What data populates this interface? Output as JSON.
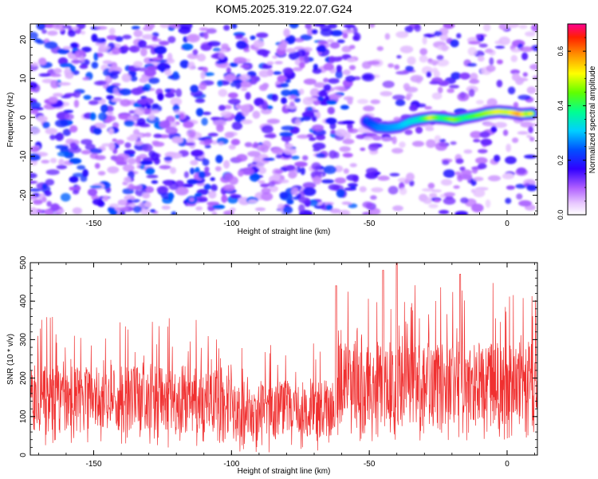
{
  "figure_title": "KOM5.2025.319.22.07.G24",
  "chart_data": [
    {
      "type": "heatmap",
      "xlabel": "Height of straight line (km)",
      "ylabel": "Frequency (Hz)",
      "xlim": [
        -173,
        11
      ],
      "ylim": [
        -25,
        24
      ],
      "xticks": [
        -150,
        -100,
        -50,
        0
      ],
      "xtick_labels": [
        "-150",
        "-100",
        "-50",
        "0"
      ],
      "yticks": [
        -20,
        -10,
        0,
        10,
        20
      ],
      "ytick_labels": [
        "-20",
        "-10",
        "0",
        "10",
        "20"
      ],
      "colorbar": {
        "label": "Normalized spectral amplitude",
        "range": [
          0,
          0.7
        ],
        "ticks": [
          0.0,
          0.2,
          0.4,
          0.6
        ],
        "tick_labels": [
          "0.0",
          "0.2",
          "0.4",
          "0.6"
        ]
      },
      "ridge": {
        "x": [
          -51,
          -47,
          -43,
          -39,
          -35,
          -31,
          -27,
          -23,
          -19,
          -15,
          -11,
          -7,
          -3,
          1,
          5,
          9
        ],
        "y": [
          -1.0,
          -2.5,
          -2.7,
          -2.3,
          -1.0,
          -0.4,
          0.0,
          -0.2,
          -0.6,
          0.0,
          0.5,
          1.2,
          1.5,
          1.3,
          0.8,
          1.0
        ],
        "amplitude": [
          0.25,
          0.3,
          0.32,
          0.34,
          0.38,
          0.4,
          0.6,
          0.45,
          0.55,
          0.45,
          0.5,
          0.55,
          0.6,
          0.58,
          0.68,
          0.5
        ]
      }
    },
    {
      "type": "line",
      "xlabel": "Height of straight line (km)",
      "ylabel": "SNR (10 * v/v)",
      "xlim": [
        -173,
        11
      ],
      "ylim": [
        0,
        500
      ],
      "xticks": [
        -150,
        -100,
        -50,
        0
      ],
      "xtick_labels": [
        "-150",
        "-100",
        "-50",
        "0"
      ],
      "yticks": [
        0,
        100,
        200,
        300,
        400,
        500
      ],
      "ytick_labels": [
        "0",
        "100",
        "200",
        "300",
        "400",
        "500"
      ],
      "series": [
        {
          "name": "SNR",
          "color": "#f03030",
          "regime": {
            "x_breaks": [
              -173,
              -100,
              -62,
              11
            ],
            "baseline": [
              145,
              120,
              185
            ],
            "spread": [
              90,
              75,
              110
            ],
            "max_peaks": [
              {
                "x": -40,
                "y": 500
              },
              {
                "x": -45,
                "y": 480
              },
              {
                "x": -62,
                "y": 440
              },
              {
                "x": -17,
                "y": 470
              }
            ]
          }
        }
      ]
    }
  ],
  "colors": {
    "background": "#ffffff",
    "axis": "#000000",
    "snr_line": "#f03030"
  }
}
